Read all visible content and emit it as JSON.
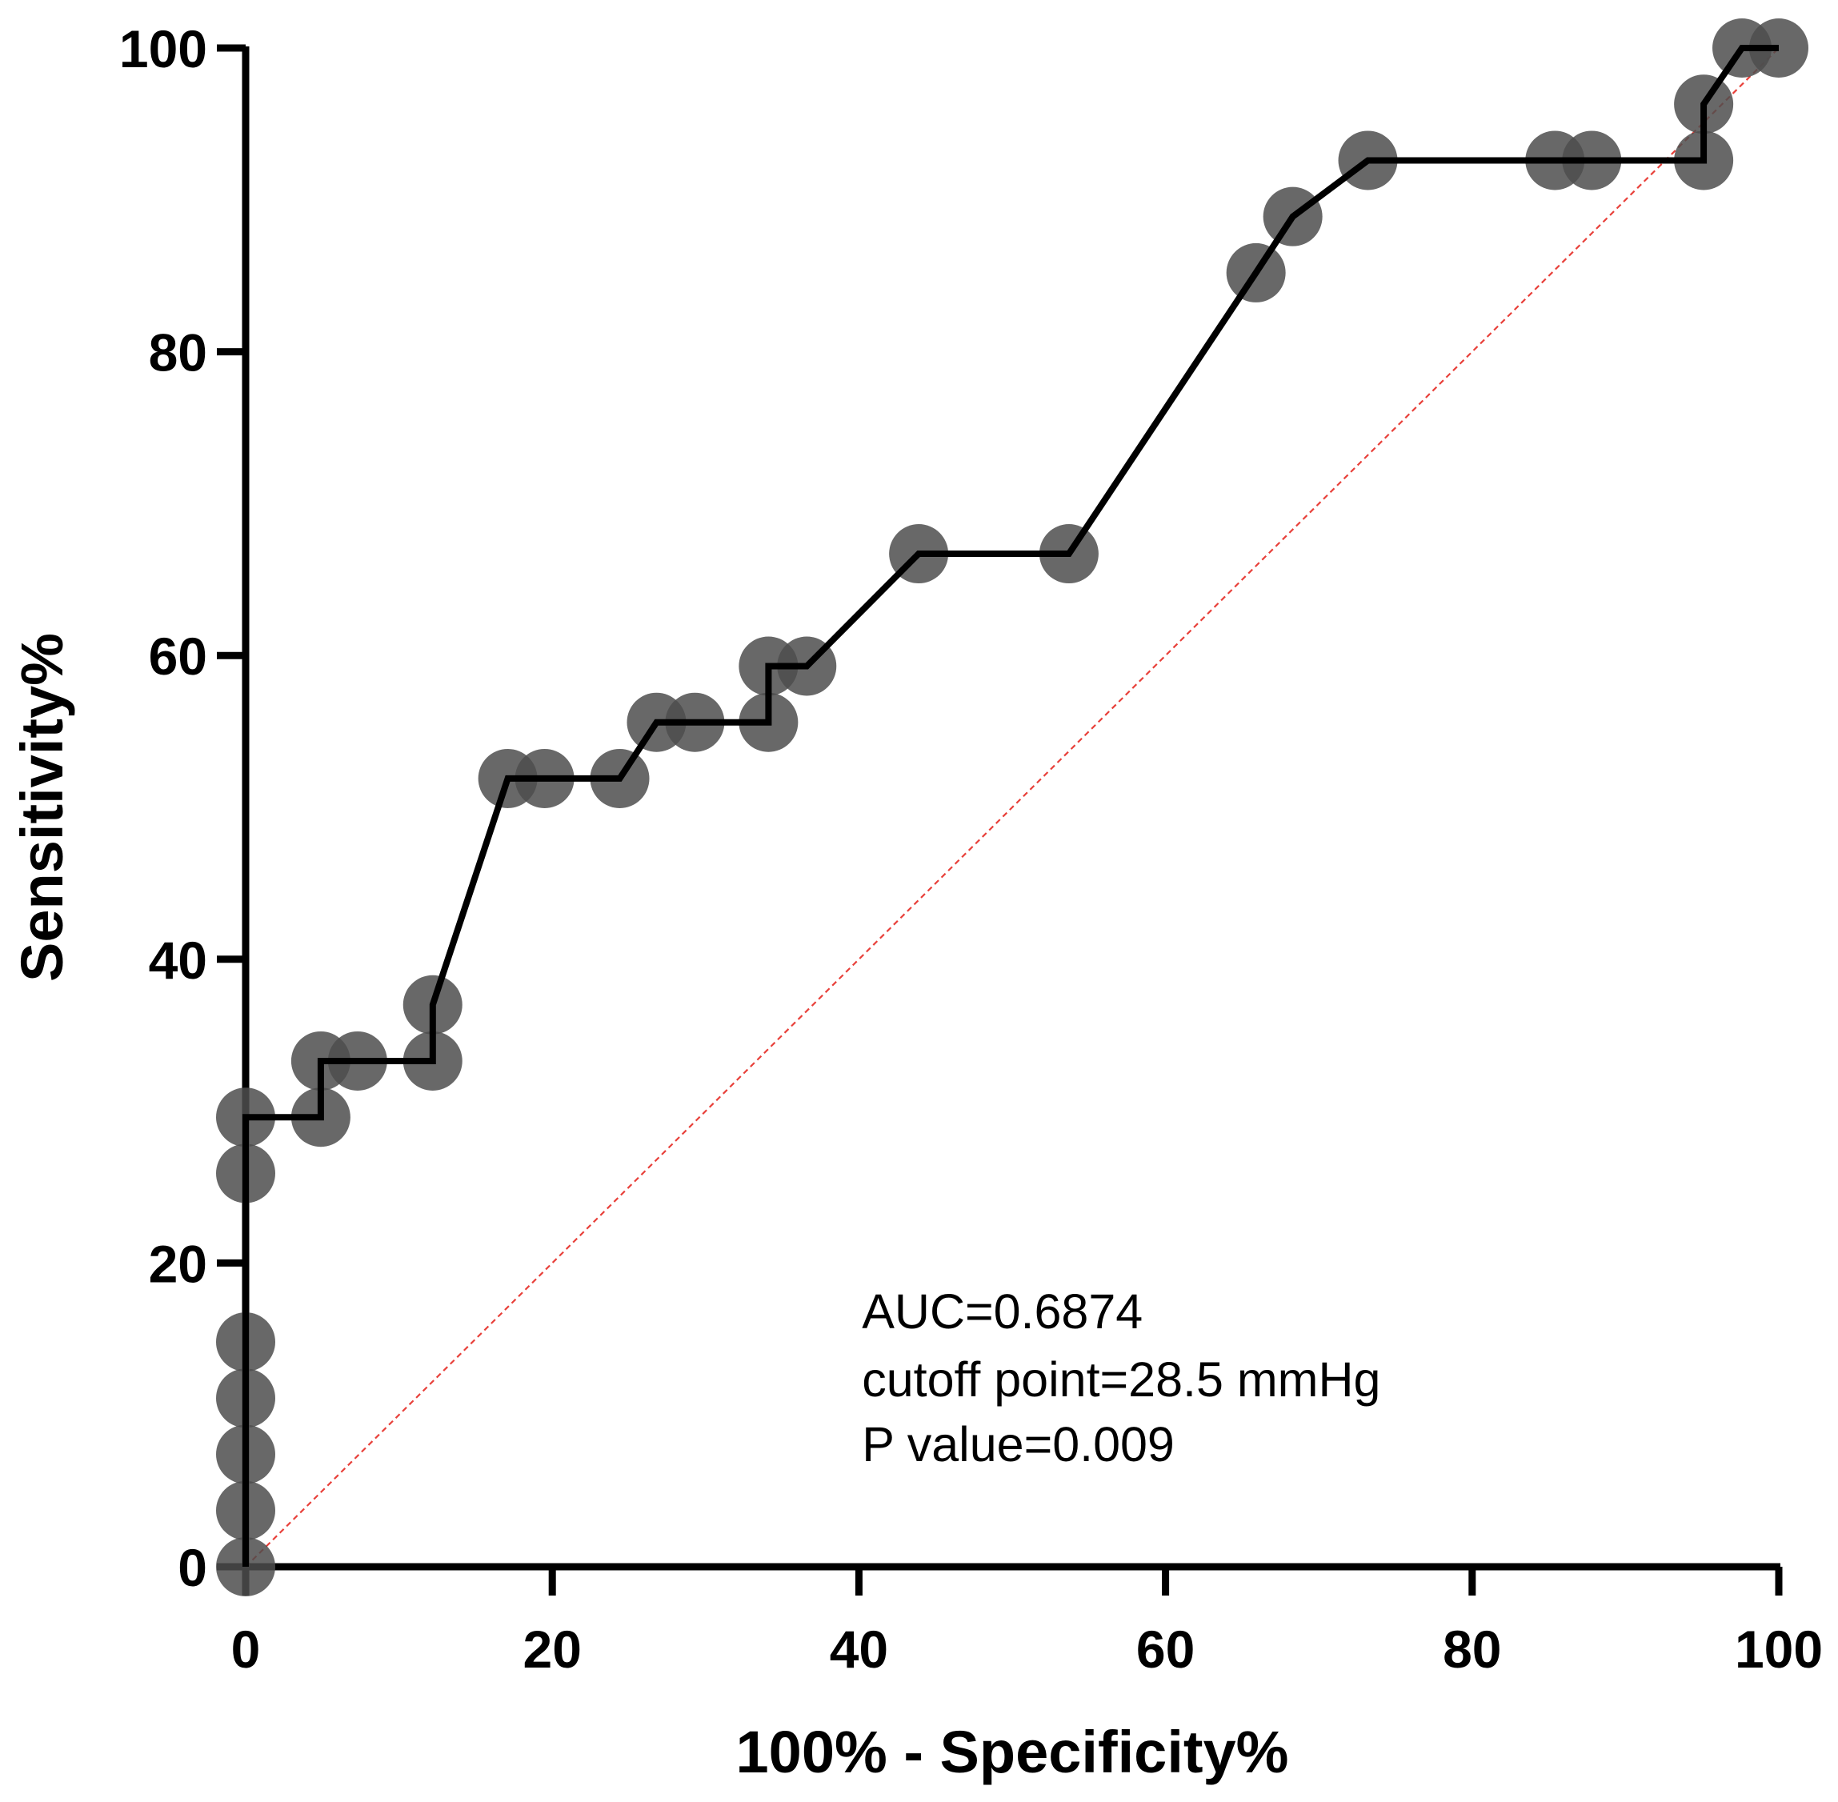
{
  "chart_data": {
    "type": "line",
    "subtype": "roc-curve",
    "title": "",
    "xlabel": "100% - Specificity%",
    "ylabel": "Sensitivity%",
    "xlim": [
      0,
      100
    ],
    "ylim": [
      0,
      100
    ],
    "xticks": [
      0,
      20,
      40,
      60,
      80,
      100
    ],
    "yticks": [
      0,
      20,
      40,
      60,
      80,
      100
    ],
    "grid": false,
    "colors": {
      "curve": "#000000",
      "points": "#4d4d4d",
      "reference": "#e8403a",
      "axes": "#000000"
    },
    "series": [
      {
        "name": "ROC curve",
        "style": "step-line",
        "x": [
          0,
          0,
          0,
          0,
          0,
          0,
          0,
          4.9,
          4.9,
          7.3,
          12.2,
          12.2,
          17.1,
          19.5,
          24.4,
          26.8,
          29.3,
          34.1,
          34.1,
          36.6,
          43.9,
          53.7,
          65.9,
          68.3,
          73.2,
          85.4,
          87.8,
          95.1,
          95.1,
          97.6,
          100
        ],
        "y": [
          0,
          3.7,
          7.4,
          11.1,
          14.8,
          25.9,
          29.6,
          29.6,
          33.3,
          33.3,
          33.3,
          37.0,
          51.9,
          51.9,
          51.9,
          55.6,
          55.6,
          55.6,
          59.3,
          59.3,
          66.7,
          66.7,
          85.2,
          88.9,
          92.6,
          92.6,
          92.6,
          92.6,
          96.3,
          100,
          100
        ]
      },
      {
        "name": "Reference line",
        "style": "dashed",
        "x": [
          0,
          100
        ],
        "y": [
          0,
          100
        ]
      }
    ],
    "annotations": [
      "AUC=0.6874",
      "cutoff point=28.5 mmHg",
      "P value=0.009"
    ]
  }
}
